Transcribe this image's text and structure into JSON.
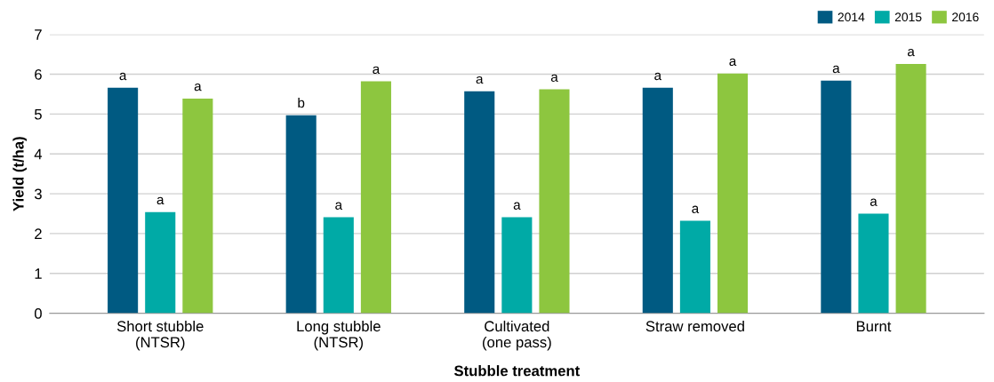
{
  "chart_data": {
    "type": "bar",
    "xlabel": "Stubble treatment",
    "ylabel": "Yield (t/ha)",
    "categories": [
      "Short stubble\n(NTSR)",
      "Long stubble\n(NTSR)",
      "Cultivated\n(one pass)",
      "Straw removed",
      "Burnt"
    ],
    "series": [
      {
        "name": "2014",
        "color": "#005a82",
        "values": [
          5.66,
          4.97,
          5.57,
          5.66,
          5.84
        ],
        "value_labels": [
          "a",
          "b",
          "a",
          "a",
          "a"
        ]
      },
      {
        "name": "2015",
        "color": "#00aaa6",
        "values": [
          2.54,
          2.41,
          2.41,
          2.32,
          2.5
        ],
        "value_labels": [
          "a",
          "a",
          "a",
          "a",
          "a"
        ]
      },
      {
        "name": "2016",
        "color": "#8dc63f",
        "values": [
          5.39,
          5.82,
          5.62,
          6.02,
          6.26
        ],
        "value_labels": [
          "a",
          "a",
          "a",
          "a",
          "a"
        ]
      }
    ],
    "ylim": [
      0,
      7
    ],
    "yticks": [
      0,
      1,
      2,
      3,
      4,
      5,
      6,
      7
    ],
    "grid": "y",
    "legend": "top right"
  }
}
